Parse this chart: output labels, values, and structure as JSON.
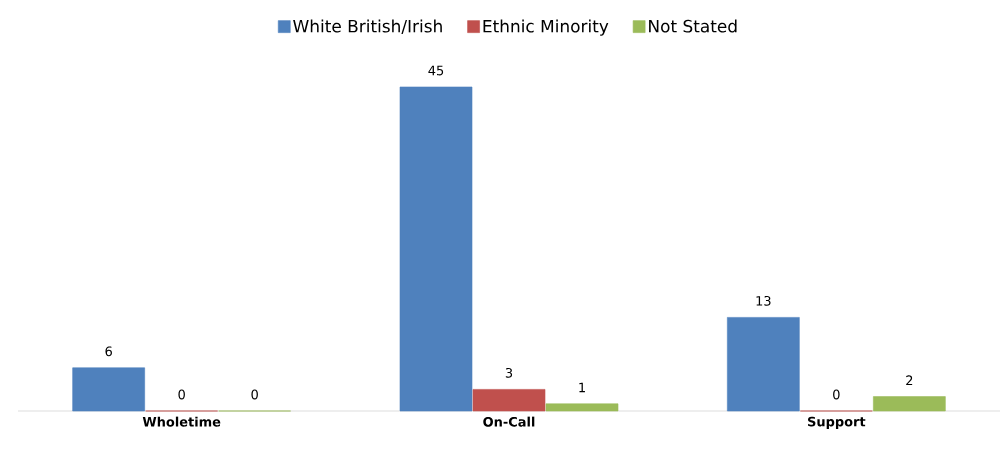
{
  "chart_data": {
    "type": "bar",
    "categories": [
      "Wholetime",
      "On-Call",
      "Support"
    ],
    "series": [
      {
        "name": "White British/Irish",
        "color": "#4f81bd",
        "values": [
          6,
          45,
          13
        ]
      },
      {
        "name": "Ethnic Minority",
        "color": "#c0504d",
        "values": [
          0,
          3,
          0
        ]
      },
      {
        "name": "Not Stated",
        "color": "#9bbb59",
        "values": [
          0,
          1,
          2
        ]
      }
    ],
    "data_labels": true,
    "legend": "top"
  }
}
